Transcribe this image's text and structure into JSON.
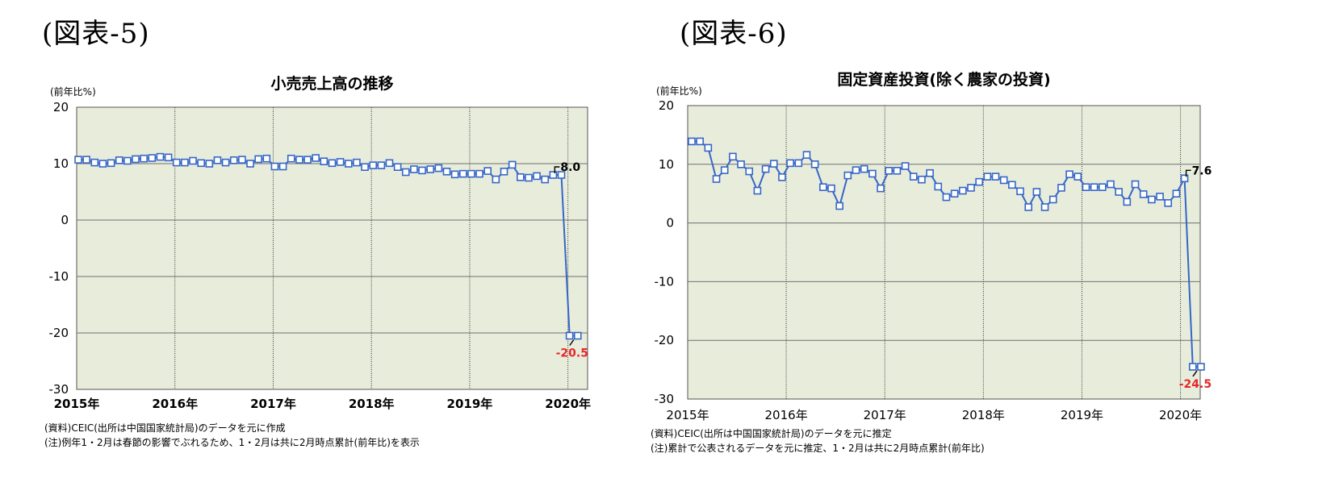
{
  "figures": [
    {
      "label": "(図表-5)",
      "notes": [
        "(資料)CEIC(出所は中国国家統計局)のデータを元に作成",
        "(注)例年1・2月は春節の影響でぶれるため、1・2月は共に2月時点累計(前年比)を表示"
      ]
    },
    {
      "label": "(図表-6)",
      "notes": [
        "(資料)CEIC(出所は中国国家統計局)のデータを元に推定",
        "(注)累計で公表されるデータを元に推定、1・2月は共に2月時点累計(前年比)"
      ]
    }
  ],
  "chart_data": [
    {
      "type": "line",
      "title": "小売売上高の推移",
      "ylabel": "(前年比%)",
      "ylim": [
        -30,
        20
      ],
      "yticks": [
        "20",
        "10",
        "0",
        "-10",
        "-20",
        "-30"
      ],
      "xticks": [
        "2015年",
        "2016年",
        "2017年",
        "2018年",
        "2019年",
        "2020年"
      ],
      "grid": true,
      "background": "#e8ecdb",
      "line_color": "#3566c7",
      "series": [
        {
          "x_start": "2015-01",
          "values": [
            10.7,
            10.7,
            10.2,
            10.0,
            10.1,
            10.6,
            10.5,
            10.8,
            10.9,
            11.0,
            11.2,
            11.1,
            10.2,
            10.2,
            10.5,
            10.1,
            10.0,
            10.6,
            10.2,
            10.6,
            10.7,
            10.0,
            10.8,
            10.9,
            9.5,
            9.5,
            10.9,
            10.7,
            10.7,
            11.0,
            10.4,
            10.1,
            10.3,
            10.0,
            10.2,
            9.4,
            9.7,
            9.7,
            10.1,
            9.4,
            8.5,
            9.0,
            8.8,
            9.0,
            9.2,
            8.6,
            8.1,
            8.2,
            8.2,
            8.2,
            8.7,
            7.2,
            8.6,
            9.8,
            7.6,
            7.5,
            7.8,
            7.2,
            8.0,
            8.0,
            -20.5,
            -20.5
          ]
        }
      ],
      "annotations": [
        {
          "text": "8.0",
          "value": 8.0,
          "type": "positive"
        },
        {
          "text": "-20.5",
          "value": -20.5,
          "type": "negative"
        }
      ]
    },
    {
      "type": "line",
      "title": "固定資産投資(除く農家の投資)",
      "ylabel": "(前年比%)",
      "ylim": [
        -30,
        20
      ],
      "yticks": [
        "20",
        "10",
        "0",
        "-10",
        "-20",
        "-30"
      ],
      "xticks": [
        "2015年",
        "2016年",
        "2017年",
        "2018年",
        "2019年",
        "2020年"
      ],
      "grid": true,
      "background": "#e8ecdb",
      "line_color": "#3566c7",
      "series": [
        {
          "x_start": "2015-01",
          "values": [
            13.9,
            13.9,
            12.8,
            7.5,
            9.0,
            11.3,
            10.0,
            8.8,
            5.5,
            9.2,
            10.1,
            7.8,
            10.2,
            10.2,
            11.6,
            10.0,
            6.1,
            5.9,
            2.9,
            8.1,
            9.0,
            9.2,
            8.4,
            5.9,
            8.9,
            8.9,
            9.7,
            7.9,
            7.4,
            8.5,
            6.2,
            4.4,
            5.0,
            5.5,
            6.0,
            7.0,
            7.9,
            7.9,
            7.3,
            6.5,
            5.4,
            2.7,
            5.3,
            2.7,
            4.0,
            6.0,
            8.3,
            7.9,
            6.1,
            6.1,
            6.1,
            6.6,
            5.3,
            3.6,
            6.6,
            4.9,
            4.0,
            4.5,
            3.4,
            5.0,
            7.6,
            -24.5,
            -24.5
          ]
        }
      ],
      "annotations": [
        {
          "text": "7.6",
          "value": 7.6,
          "type": "positive"
        },
        {
          "text": "-24.5",
          "value": -24.5,
          "type": "negative"
        }
      ]
    }
  ]
}
